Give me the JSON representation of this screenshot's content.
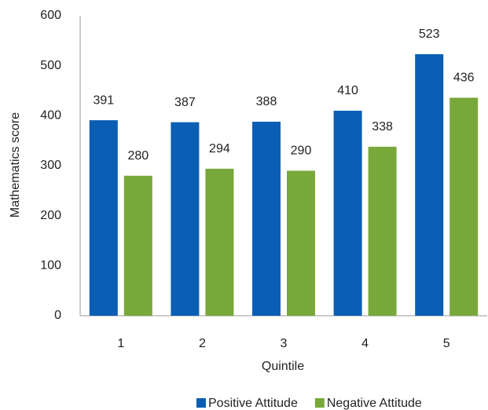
{
  "chart_data": {
    "type": "bar",
    "x_label": "Quintile",
    "y_label": "Mathematics score",
    "categories": [
      "1",
      "2",
      "3",
      "4",
      "5"
    ],
    "series": [
      {
        "name": "Positive Attitude",
        "color": "#0a5fb4",
        "values": [
          391,
          387,
          388,
          410,
          523
        ]
      },
      {
        "name": "Negative Attitude",
        "color": "#78a83a",
        "values": [
          280,
          294,
          290,
          338,
          436
        ]
      }
    ],
    "ylim": [
      0,
      600
    ],
    "yticks": [
      0,
      100,
      200,
      300,
      400,
      500,
      600
    ],
    "grid": false,
    "legend": "bottom"
  }
}
